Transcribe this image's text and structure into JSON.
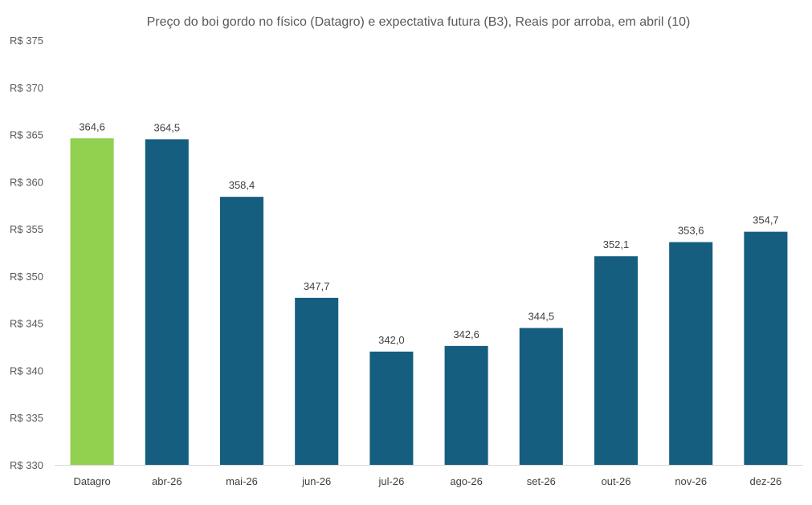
{
  "chart_data": {
    "type": "bar",
    "title": "Preço do boi gordo no físico (Datagro)  e expectativa futura (B3), Reais por arroba, em abril (10)",
    "xlabel": "",
    "ylabel": "",
    "ylim": [
      330,
      375
    ],
    "y_step": 5,
    "y_tick_prefix": "R$ ",
    "grid": false,
    "legend": "none",
    "categories": [
      "Datagro",
      "abr-26",
      "mai-26",
      "jun-26",
      "jul-26",
      "ago-26",
      "set-26",
      "out-26",
      "nov-26",
      "dez-26"
    ],
    "values": [
      364.6,
      364.5,
      358.4,
      347.7,
      342.0,
      342.6,
      344.5,
      352.1,
      353.6,
      354.7
    ],
    "value_labels": [
      "364,6",
      "364,5",
      "358,4",
      "347,7",
      "342,0",
      "342,6",
      "344,5",
      "352,1",
      "353,6",
      "354,7"
    ],
    "bar_colors": [
      "#92D050",
      "#155E80",
      "#155E80",
      "#155E80",
      "#155E80",
      "#155E80",
      "#155E80",
      "#155E80",
      "#155E80",
      "#155E80"
    ],
    "axis_color": "#D9D9D9"
  }
}
